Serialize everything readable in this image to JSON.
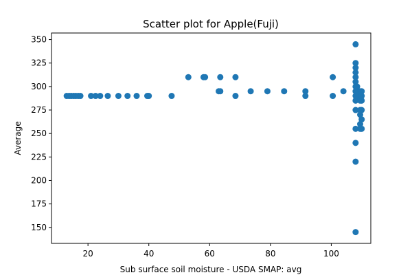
{
  "chart_data": {
    "type": "scatter",
    "title": "Scatter plot for Apple(Fuji)",
    "xlabel": "Sub surface soil moisture - USDA SMAP: avg",
    "ylabel": "Average",
    "xlim": [
      8,
      113
    ],
    "ylim": [
      133,
      357
    ],
    "xticks": [
      20,
      40,
      60,
      80,
      100
    ],
    "yticks": [
      150,
      175,
      200,
      225,
      250,
      275,
      300,
      325,
      350
    ],
    "grid": false,
    "legend": "none",
    "marker_color": "#1f77b4",
    "points": [
      {
        "x": 13,
        "y": 290
      },
      {
        "x": 13.8,
        "y": 290
      },
      {
        "x": 14.5,
        "y": 290
      },
      {
        "x": 15.3,
        "y": 290
      },
      {
        "x": 16,
        "y": 290
      },
      {
        "x": 16.8,
        "y": 290
      },
      {
        "x": 17.5,
        "y": 290
      },
      {
        "x": 21,
        "y": 290
      },
      {
        "x": 22.5,
        "y": 290
      },
      {
        "x": 24,
        "y": 290
      },
      {
        "x": 26.5,
        "y": 290
      },
      {
        "x": 30,
        "y": 290
      },
      {
        "x": 33,
        "y": 290
      },
      {
        "x": 36,
        "y": 290
      },
      {
        "x": 39.5,
        "y": 290
      },
      {
        "x": 40,
        "y": 290
      },
      {
        "x": 47.5,
        "y": 290
      },
      {
        "x": 53,
        "y": 310
      },
      {
        "x": 58,
        "y": 310
      },
      {
        "x": 58.5,
        "y": 310
      },
      {
        "x": 63,
        "y": 295
      },
      {
        "x": 63.5,
        "y": 295
      },
      {
        "x": 63.5,
        "y": 310
      },
      {
        "x": 68.5,
        "y": 310
      },
      {
        "x": 68.5,
        "y": 290
      },
      {
        "x": 73.5,
        "y": 295
      },
      {
        "x": 79,
        "y": 295
      },
      {
        "x": 84.5,
        "y": 295
      },
      {
        "x": 91.5,
        "y": 295
      },
      {
        "x": 91.5,
        "y": 290
      },
      {
        "x": 100.5,
        "y": 310
      },
      {
        "x": 100.5,
        "y": 290
      },
      {
        "x": 104,
        "y": 295
      },
      {
        "x": 108,
        "y": 345
      },
      {
        "x": 108,
        "y": 325
      },
      {
        "x": 108,
        "y": 320
      },
      {
        "x": 108,
        "y": 315
      },
      {
        "x": 108,
        "y": 310
      },
      {
        "x": 108,
        "y": 305
      },
      {
        "x": 108,
        "y": 300
      },
      {
        "x": 108,
        "y": 295
      },
      {
        "x": 108,
        "y": 290
      },
      {
        "x": 108,
        "y": 285
      },
      {
        "x": 108,
        "y": 275
      },
      {
        "x": 108,
        "y": 255
      },
      {
        "x": 108,
        "y": 240
      },
      {
        "x": 108,
        "y": 220
      },
      {
        "x": 108,
        "y": 145
      },
      {
        "x": 108.5,
        "y": 300
      },
      {
        "x": 109,
        "y": 295
      },
      {
        "x": 109,
        "y": 290
      },
      {
        "x": 109.5,
        "y": 295
      },
      {
        "x": 110,
        "y": 295
      },
      {
        "x": 110,
        "y": 290
      },
      {
        "x": 109.5,
        "y": 285
      },
      {
        "x": 110,
        "y": 275
      },
      {
        "x": 109.5,
        "y": 270
      },
      {
        "x": 110,
        "y": 265
      },
      {
        "x": 109.5,
        "y": 260
      },
      {
        "x": 110,
        "y": 255
      },
      {
        "x": 109.5,
        "y": 255
      },
      {
        "x": 110,
        "y": 285
      },
      {
        "x": 109.5,
        "y": 275
      }
    ]
  }
}
